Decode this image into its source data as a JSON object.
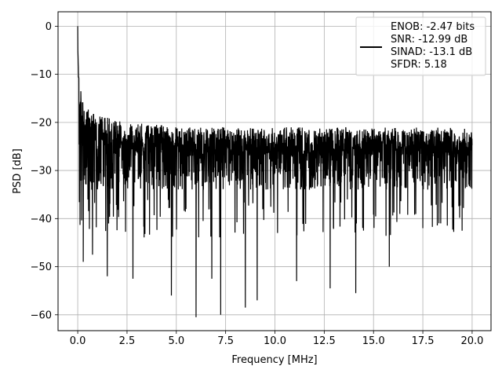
{
  "chart_data": {
    "type": "line",
    "title": "",
    "xlabel": "Frequency [MHz]",
    "ylabel": "PSD [dB]",
    "xlim": [
      -0.998,
      20.958
    ],
    "ylim": [
      -63.3,
      3.0
    ],
    "xticks": [
      0.0,
      2.5,
      5.0,
      7.5,
      10.0,
      12.5,
      15.0,
      17.5,
      20.0
    ],
    "xtick_labels": [
      "0.0",
      "2.5",
      "5.0",
      "7.5",
      "10.0",
      "12.5",
      "15.0",
      "17.5",
      "20.0"
    ],
    "yticks": [
      0,
      -10,
      -20,
      -30,
      -40,
      -50,
      -60
    ],
    "ytick_labels": [
      "0",
      "−10",
      "−20",
      "−30",
      "−40",
      "−50",
      "−60"
    ],
    "grid": true,
    "legend_position": "top-right",
    "line_color": "#000000",
    "legend": [
      "ENOB: -2.47 bits",
      "SNR: -12.99 dB",
      "SINAD: -13.1 dB",
      "SFDR: 5.18"
    ],
    "series": [
      {
        "x": [
          0.0,
          0.01,
          0.03,
          0.05,
          0.08,
          0.12,
          0.2,
          0.3,
          0.5,
          0.7,
          0.9,
          1.2,
          1.5,
          2.0,
          2.5,
          3.0,
          3.5,
          4.0,
          4.5,
          5.0,
          5.5,
          6.0,
          6.5,
          7.0,
          7.5,
          8.0,
          8.5,
          9.0,
          9.5,
          10.0,
          10.5,
          11.0,
          11.5,
          12.0,
          12.5,
          13.0,
          13.5,
          14.0,
          14.5,
          15.0,
          15.5,
          16.0,
          16.5,
          17.0,
          17.5,
          18.0,
          18.5,
          19.0,
          19.5,
          20.0
        ],
        "y": [
          0.0,
          -5.0,
          -9.0,
          -10.5,
          -12.0,
          -13.0,
          -14.0,
          -15.0,
          -16.5,
          -17.5,
          -18.0,
          -18.5,
          -19.0,
          -19.5,
          -20.0,
          -20.0,
          -20.5,
          -20.5,
          -20.5,
          -21.0,
          -21.0,
          -21.0,
          -21.0,
          -21.0,
          -21.0,
          -21.0,
          -21.0,
          -21.0,
          -21.0,
          -21.0,
          -21.0,
          -21.0,
          -21.0,
          -21.0,
          -21.0,
          -21.0,
          -21.0,
          -21.0,
          -21.0,
          -21.0,
          -21.0,
          -21.0,
          -21.0,
          -21.0,
          -21.0,
          -21.0,
          -21.0,
          -21.0,
          -21.0,
          -21.0
        ],
        "description": "Upper envelope of the noisy PSD trace"
      }
    ],
    "noise_floor_mean": -28,
    "deep_nulls": [
      {
        "x": 0.28,
        "y": -49
      },
      {
        "x": 0.75,
        "y": -47.5
      },
      {
        "x": 1.5,
        "y": -52
      },
      {
        "x": 2.8,
        "y": -52.5
      },
      {
        "x": 4.75,
        "y": -56
      },
      {
        "x": 6.0,
        "y": -60.5
      },
      {
        "x": 6.8,
        "y": -52.5
      },
      {
        "x": 7.25,
        "y": -60
      },
      {
        "x": 8.5,
        "y": -58.5
      },
      {
        "x": 9.1,
        "y": -57
      },
      {
        "x": 11.1,
        "y": -53
      },
      {
        "x": 12.8,
        "y": -54.5
      },
      {
        "x": 14.1,
        "y": -55.5
      },
      {
        "x": 15.8,
        "y": -50
      }
    ]
  }
}
